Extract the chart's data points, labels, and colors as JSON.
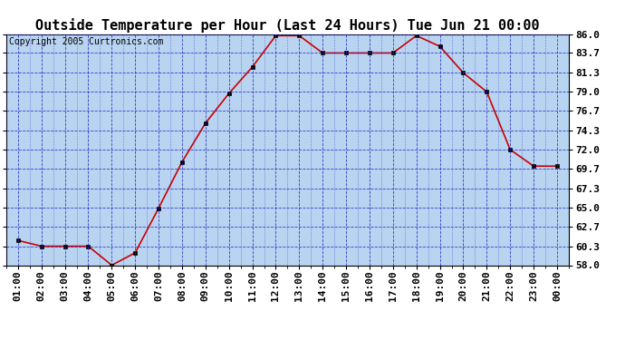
{
  "title": "Outside Temperature per Hour (Last 24 Hours) Tue Jun 21 00:00",
  "copyright": "Copyright 2005 Curtronics.com",
  "hours": [
    "01:00",
    "02:00",
    "03:00",
    "04:00",
    "05:00",
    "06:00",
    "07:00",
    "08:00",
    "09:00",
    "10:00",
    "11:00",
    "12:00",
    "13:00",
    "14:00",
    "15:00",
    "16:00",
    "17:00",
    "18:00",
    "19:00",
    "20:00",
    "21:00",
    "22:00",
    "23:00",
    "00:00"
  ],
  "temps": [
    61.0,
    60.3,
    60.3,
    60.3,
    58.0,
    59.5,
    64.9,
    70.5,
    75.2,
    78.8,
    82.0,
    85.8,
    85.8,
    83.7,
    83.7,
    83.7,
    83.7,
    85.8,
    84.5,
    81.3,
    79.0,
    72.0,
    70.0,
    70.0
  ],
  "ylim": [
    58.0,
    86.0
  ],
  "yticks": [
    58.0,
    60.3,
    62.7,
    65.0,
    67.3,
    69.7,
    72.0,
    74.3,
    76.7,
    79.0,
    81.3,
    83.7,
    86.0
  ],
  "line_color": "#cc0000",
  "marker_color": "#000000",
  "bg_color": "#b8d4f0",
  "grid_color": "#2222cc",
  "title_fontsize": 11,
  "copyright_fontsize": 7,
  "tick_fontsize": 8
}
